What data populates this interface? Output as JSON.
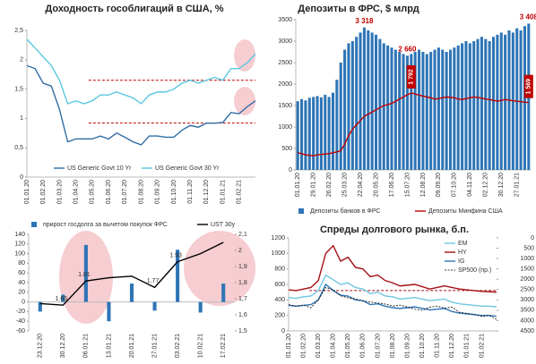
{
  "chart_data": [
    {
      "type": "line",
      "title": "Доходность гособлигаций в США, %",
      "categories": [
        "01.01.20",
        null,
        "01.02.20",
        null,
        "01.03.20",
        null,
        "01.04.20",
        null,
        "01.05.20",
        null,
        "01.06.20",
        null,
        "01.07.20",
        null,
        "01.08.20",
        null,
        "01.09.20",
        null,
        "01.10.20",
        null,
        "01.11.20",
        null,
        "01.12.20",
        null,
        "01.01.21",
        null,
        "01.02.21",
        null,
        null
      ],
      "series": [
        {
          "name": "US Generic Govt 10 Yr",
          "color": "#2e6da4",
          "values": [
            1.9,
            1.85,
            1.6,
            1.55,
            1.15,
            0.6,
            0.65,
            0.65,
            0.65,
            0.7,
            0.65,
            0.75,
            0.68,
            0.6,
            0.55,
            0.7,
            0.7,
            0.68,
            0.68,
            0.8,
            0.88,
            0.85,
            0.92,
            0.92,
            0.93,
            1.1,
            1.08,
            1.2,
            1.3
          ]
        },
        {
          "name": "US Generic Govt 30 Yr",
          "color": "#5bc8e0",
          "values": [
            2.35,
            2.2,
            2.05,
            1.9,
            1.65,
            1.25,
            1.3,
            1.25,
            1.3,
            1.4,
            1.4,
            1.45,
            1.4,
            1.35,
            1.25,
            1.4,
            1.45,
            1.45,
            1.5,
            1.6,
            1.65,
            1.6,
            1.65,
            1.7,
            1.65,
            1.85,
            1.85,
            1.95,
            2.1
          ]
        }
      ],
      "ylim": [
        0,
        2.5
      ],
      "yticks": [
        0,
        {
          "value": 0.5,
          "label": "0,5"
        },
        1,
        {
          "value": 1.5,
          "label": "1,5"
        },
        2,
        {
          "value": 2.5,
          "label": "2,5"
        }
      ],
      "reference_lines": [
        1.65,
        0.92
      ],
      "reference_line_color": "#c00000"
    },
    {
      "type": "combo",
      "title": "Депозиты в ФРС, $ млрд",
      "categories": [
        "01.01.20",
        null,
        null,
        null,
        "29.01.20",
        null,
        null,
        null,
        "26.02.20",
        null,
        null,
        null,
        "25.03.20",
        null,
        null,
        null,
        "22.04.20",
        null,
        null,
        null,
        "20.05.20",
        null,
        null,
        null,
        "17.06.20",
        null,
        null,
        null,
        "15.07.20",
        null,
        null,
        null,
        "12.08.20",
        null,
        null,
        null,
        "09.09.20",
        null,
        null,
        null,
        "07.10.20",
        null,
        null,
        null,
        "04.11.20",
        null,
        null,
        null,
        "02.12.20",
        null,
        null,
        null,
        "30.12.20",
        null,
        null,
        null,
        "27.01.21",
        null,
        null,
        null
      ],
      "series": [
        {
          "name": "Депозиты банков в ФРС",
          "type": "bar",
          "color": "#2e75b6",
          "values": [
            1600,
            1650,
            1620,
            1680,
            1700,
            1720,
            1690,
            1750,
            1700,
            1800,
            2100,
            2500,
            2800,
            2950,
            3000,
            3100,
            3200,
            3318,
            3250,
            3200,
            3150,
            3050,
            2950,
            2900,
            2850,
            2800,
            2750,
            2700,
            2660,
            2700,
            2750,
            2800,
            2750,
            2700,
            2750,
            2800,
            2850,
            2800,
            2750,
            2800,
            2850,
            2900,
            2950,
            3000,
            2950,
            3000,
            3050,
            3100,
            3050,
            3000,
            3100,
            3150,
            3200,
            3150,
            3250,
            3200,
            3300,
            3250,
            3350,
            3408
          ],
          "value_labels": [
            null,
            null,
            null,
            null,
            null,
            null,
            null,
            null,
            null,
            null,
            null,
            null,
            null,
            null,
            null,
            null,
            null,
            "3 318",
            null,
            null,
            null,
            null,
            null,
            null,
            null,
            null,
            null,
            null,
            "2 660",
            null,
            null,
            null,
            null,
            null,
            null,
            null,
            null,
            null,
            null,
            null,
            null,
            null,
            null,
            null,
            null,
            null,
            null,
            null,
            null,
            null,
            null,
            null,
            null,
            null,
            null,
            null,
            null,
            null,
            null,
            "3 408"
          ]
        },
        {
          "name": "Депозиты Минфина США",
          "type": "line",
          "color": "#c00000",
          "values": [
            400,
            380,
            350,
            340,
            330,
            350,
            360,
            370,
            380,
            400,
            420,
            450,
            600,
            800,
            950,
            1050,
            1150,
            1250,
            1300,
            1350,
            1400,
            1450,
            1500,
            1520,
            1550,
            1600,
            1650,
            1700,
            1750,
            1792,
            1770,
            1740,
            1720,
            1700,
            1680,
            1650,
            1660,
            1680,
            1700,
            1690,
            1680,
            1650,
            1640,
            1660,
            1680,
            1700,
            1690,
            1670,
            1650,
            1640,
            1620,
            1600,
            1620,
            1640,
            1630,
            1610,
            1600,
            1590,
            1580,
            1569
          ],
          "value_labels": [
            null,
            null,
            null,
            null,
            null,
            null,
            null,
            null,
            null,
            null,
            null,
            null,
            null,
            null,
            null,
            null,
            null,
            null,
            null,
            null,
            null,
            null,
            null,
            null,
            null,
            null,
            null,
            null,
            null,
            "1 792",
            null,
            null,
            null,
            null,
            null,
            null,
            null,
            null,
            null,
            null,
            null,
            null,
            null,
            null,
            null,
            null,
            null,
            null,
            null,
            null,
            null,
            null,
            null,
            null,
            null,
            null,
            null,
            null,
            null,
            "1 569"
          ]
        }
      ],
      "ylim": [
        0,
        3500
      ],
      "yticks": [
        0,
        500,
        1000,
        1500,
        2000,
        2500,
        3000,
        3500
      ]
    },
    {
      "type": "combo",
      "categories": [
        "23.12.20",
        "30.12.20",
        "06.01.21",
        "13.01.21",
        "20.01.21",
        "27.01.21",
        "03.02.21",
        "10.02.21",
        "17.02.21"
      ],
      "series": [
        {
          "name": "прирост госдолга за вычетом покупок ФРС",
          "type": "bar",
          "color": "#2e75b6",
          "values": [
            -20,
            15,
            118,
            -40,
            38,
            -18,
            108,
            -22,
            38
          ]
        },
        {
          "name": "UST 30y",
          "type": "line",
          "axis": "y2",
          "color": "#000000",
          "values": [
            1.67,
            1.66,
            1.81,
            1.83,
            1.84,
            1.77,
            1.93,
            1.98,
            2.05
          ],
          "value_labels": [
            null,
            "1.66",
            "1.81",
            null,
            null,
            "1.77",
            "1.93",
            null,
            null
          ]
        }
      ],
      "ylim": [
        -60,
        140
      ],
      "yticks": [
        -60,
        -40,
        -20,
        0,
        20,
        40,
        60,
        80,
        100,
        120,
        140
      ],
      "y2lim": [
        1.5,
        2.1
      ],
      "y2ticks": [
        {
          "value": 1.5,
          "label": "1,5"
        },
        {
          "value": 1.6,
          "label": "1,6"
        },
        {
          "value": 1.7,
          "label": "1,7"
        },
        {
          "value": 1.8,
          "label": "1,8"
        },
        {
          "value": 1.9,
          "label": "1,9"
        },
        2,
        {
          "value": 2.1,
          "label": "2,1"
        }
      ]
    },
    {
      "type": "line",
      "title": "Спреды долгового рынка, б.п.",
      "categories": [
        "01.01.20",
        null,
        "01.02.20",
        null,
        "01.03.20",
        null,
        "01.04.20",
        null,
        "01.05.20",
        null,
        "01.06.20",
        null,
        "01.07.20",
        null,
        "01.08.20",
        null,
        "01.09.20",
        null,
        "01.10.20",
        null,
        "01.11.20",
        null,
        "01.12.20",
        null,
        "01.01.21",
        null,
        "01.02.21",
        null,
        null
      ],
      "series": [
        {
          "name": "EM",
          "color": "#6fc6e0",
          "values": [
            430,
            420,
            440,
            450,
            520,
            720,
            660,
            600,
            620,
            560,
            540,
            480,
            500,
            450,
            440,
            410,
            420,
            430,
            410,
            390,
            400,
            410,
            370,
            350,
            340,
            330,
            320,
            320,
            310
          ]
        },
        {
          "name": "HY",
          "color": "#a50f15",
          "values": [
            530,
            520,
            540,
            560,
            650,
            1000,
            1100,
            900,
            950,
            820,
            800,
            700,
            720,
            650,
            620,
            580,
            590,
            600,
            570,
            540,
            560,
            580,
            560,
            540,
            530,
            520,
            510,
            505,
            500
          ]
        },
        {
          "name": "IG",
          "color": "#2e75b6",
          "values": [
            330,
            320,
            330,
            340,
            400,
            600,
            520,
            460,
            450,
            400,
            390,
            340,
            350,
            320,
            300,
            290,
            300,
            310,
            290,
            270,
            280,
            290,
            250,
            230,
            220,
            210,
            200,
            200,
            190
          ]
        },
        {
          "name": "SP500 (пр.)",
          "color": "#000000",
          "dashed": true,
          "axis": "y2",
          "values": [
            3230,
            3300,
            3250,
            3380,
            3000,
            2400,
            2500,
            2800,
            2900,
            2950,
            3050,
            3100,
            3150,
            3200,
            3300,
            3250,
            3350,
            3450,
            3500,
            3350,
            3300,
            3400,
            3350,
            3600,
            3650,
            3700,
            3800,
            3750,
            3930
          ]
        }
      ],
      "ylim": [
        0,
        1200
      ],
      "yticks": [
        0,
        200,
        400,
        600,
        800,
        1000,
        1200
      ],
      "y2lim": [
        0,
        4500
      ],
      "y2_reversed": true,
      "y2ticks": [
        0,
        500,
        1000,
        1500,
        2000,
        2500,
        3000,
        3500,
        4000,
        4500
      ],
      "reference_lines": [
        520
      ],
      "reference_line_color": "#a50f15"
    }
  ]
}
